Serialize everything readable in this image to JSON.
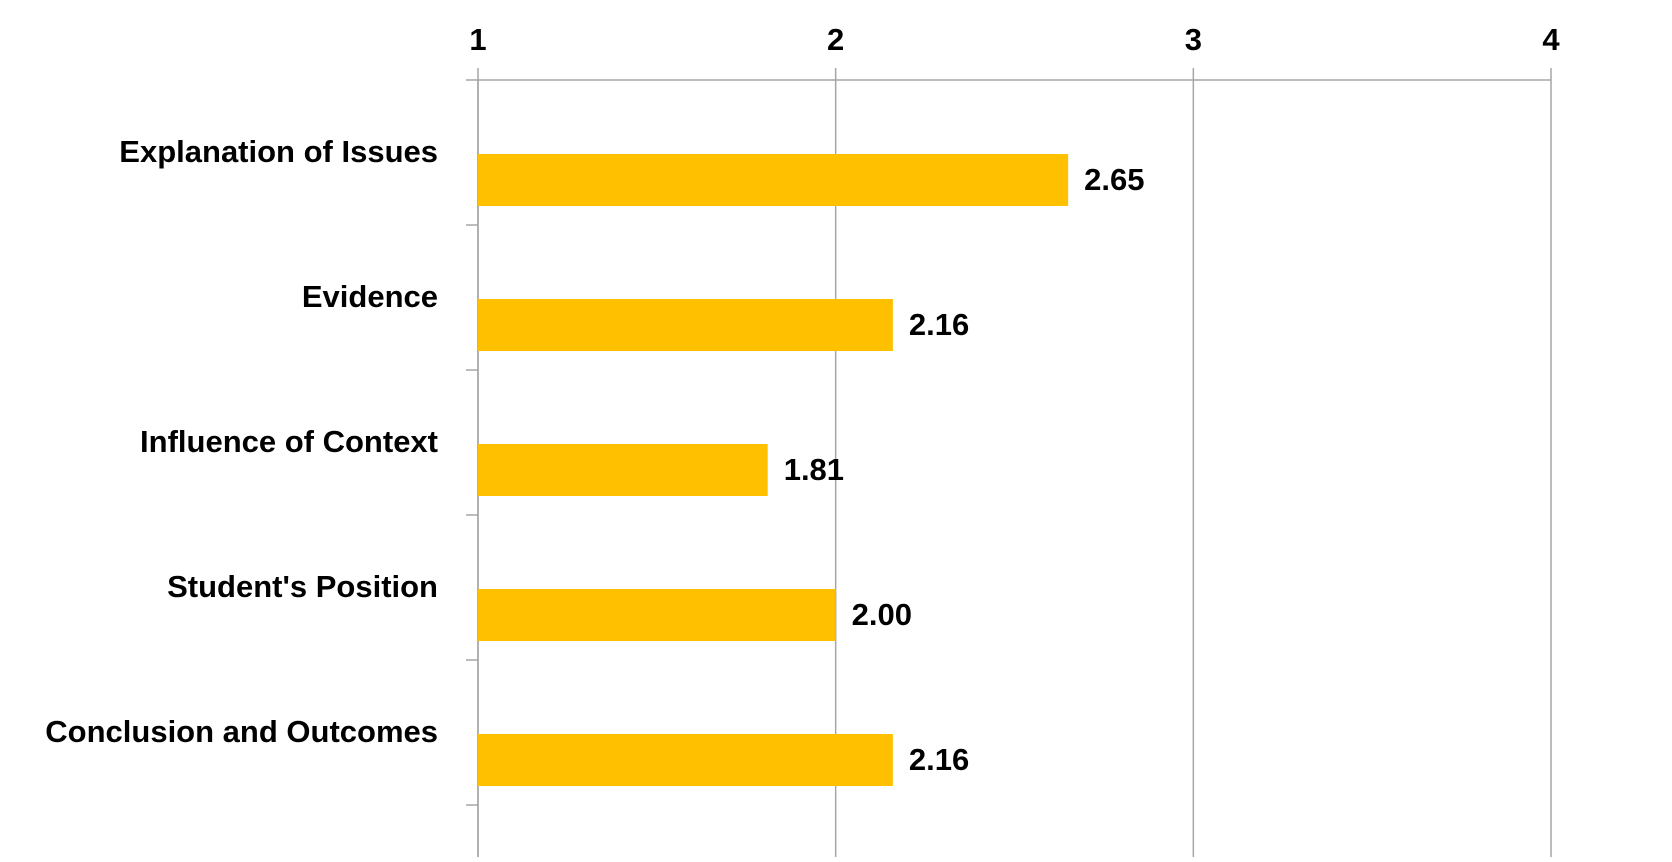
{
  "chart_data": {
    "type": "bar",
    "orientation": "horizontal",
    "title": "",
    "xlabel": "",
    "ylabel": "",
    "xlim": [
      1,
      4
    ],
    "x_ticks": [
      1,
      2,
      3,
      4
    ],
    "x_tick_labels": [
      "1",
      "2",
      "3",
      "4"
    ],
    "x_axis_position": "top",
    "grid": true,
    "legend": "none",
    "categories": [
      "Explanation of Issues",
      "Evidence",
      "Influence of Context",
      "Student's Position",
      "Conclusion and Outcomes"
    ],
    "values": [
      2.65,
      2.16,
      1.81,
      2.0,
      2.16
    ],
    "data_labels": [
      "2.65",
      "2.16",
      "1.81",
      "2.00",
      "2.16"
    ],
    "bar_color": "#FFC000",
    "grid_color": "#A6A6A6"
  }
}
